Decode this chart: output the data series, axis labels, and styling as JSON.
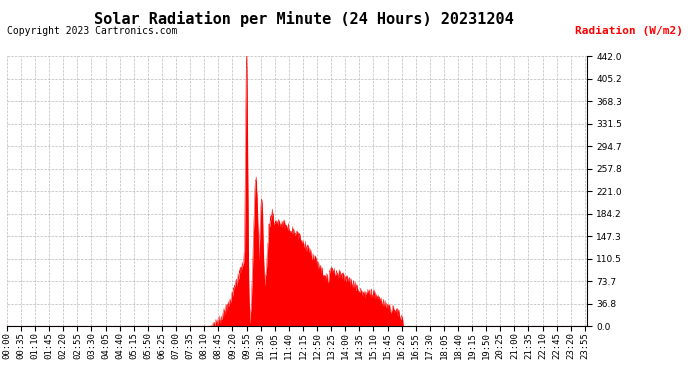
{
  "title": "Solar Radiation per Minute (24 Hours) 20231204",
  "copyright_text": "Copyright 2023 Cartronics.com",
  "ylabel": "Radiation (W/m2)",
  "ylabel_color": "#ff0000",
  "fill_color": "#ff0000",
  "line_color": "#ff0000",
  "background_color": "#ffffff",
  "plot_bg_color": "#ffffff",
  "grid_color": "#bbbbbb",
  "ymin": 0.0,
  "ymax": 442.0,
  "yticks": [
    0.0,
    36.8,
    73.7,
    110.5,
    147.3,
    184.2,
    221.0,
    257.8,
    294.7,
    331.5,
    368.3,
    405.2,
    442.0
  ],
  "minutes_per_day": 1440,
  "title_fontsize": 11,
  "copyright_fontsize": 7,
  "tick_fontsize": 6.5,
  "ylabel_fontsize": 8
}
